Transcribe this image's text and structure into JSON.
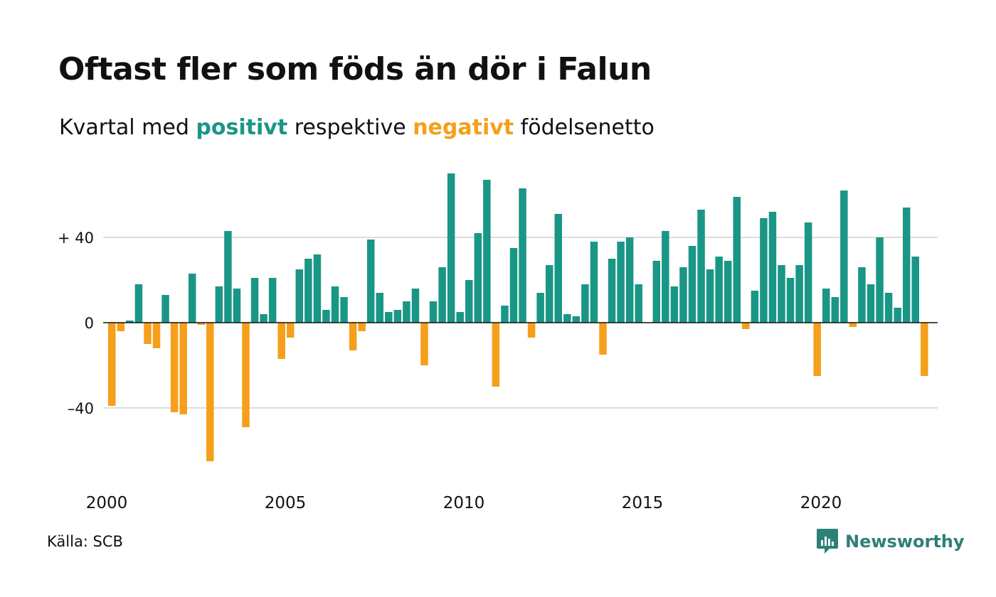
{
  "title": "Oftast fler som föds än dör i Falun",
  "subtitle": {
    "prefix": "Kvartal med ",
    "positive": "positivt",
    "middle": " respektive ",
    "negative": "negativt",
    "suffix": " födelsenetto"
  },
  "colors": {
    "positive": "#1a9687",
    "negative": "#f59f1b",
    "grid": "#dddddd",
    "zero_line": "#111111"
  },
  "source": "Källa: SCB",
  "brand": {
    "name": "Newsworthy",
    "icon": "newsworthy-logo-icon",
    "color": "#2e8077"
  },
  "chart_data": {
    "type": "bar",
    "title": "Oftast fler som föds än dör i Falun",
    "subtitle": "Kvartal med positivt respektive negativt födelsenetto",
    "xlabel": "",
    "ylabel": "",
    "x_tick_labels": [
      "2000",
      "2005",
      "2010",
      "2015",
      "2020"
    ],
    "y_tick_labels": [
      "–40",
      "0",
      "+ 40"
    ],
    "y_ticks": [
      -40,
      0,
      40
    ],
    "ylim": [
      -70,
      72
    ],
    "grid": true,
    "series": [
      {
        "values": [
          -39,
          -4,
          1,
          18,
          -10,
          -12,
          13,
          -42,
          -43,
          23,
          -1,
          -65,
          17,
          43,
          16,
          -49,
          21,
          4,
          21,
          -17,
          -7,
          25,
          30,
          32,
          6,
          17,
          12,
          -13,
          -4,
          39,
          14,
          5,
          6,
          10,
          16,
          -20,
          10,
          26,
          70,
          5,
          20,
          42,
          67,
          -30,
          8,
          35,
          63,
          -7,
          14,
          27,
          51,
          4,
          3,
          18,
          38,
          -15,
          30,
          38,
          40,
          18,
          0,
          29,
          43,
          17,
          26,
          36,
          53,
          25,
          31,
          29,
          59,
          -3,
          15,
          49,
          52,
          27,
          21,
          27,
          47,
          -25,
          16,
          12,
          62,
          -2,
          26,
          18,
          40,
          14,
          7,
          54,
          31,
          -25
        ]
      }
    ],
    "start_period": "2000 Q1",
    "frequency": "quarterly"
  }
}
